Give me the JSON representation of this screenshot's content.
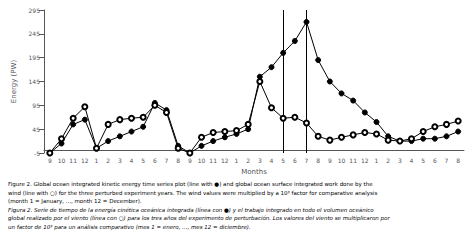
{
  "chart_data": {
    "type": "line",
    "xlabel": "Months",
    "ylabel": "Energy (PW)",
    "categories": [
      "9",
      "10",
      "11",
      "12",
      "1",
      "2",
      "3",
      "4",
      "5",
      "6",
      "7",
      "8",
      "9",
      "10",
      "11",
      "12",
      "1",
      "2",
      "3",
      "4",
      "5",
      "6",
      "7",
      "8",
      "9",
      "10",
      "11",
      "12",
      "1",
      "2",
      "3",
      "4",
      "5",
      "6",
      "7",
      "8"
    ],
    "series": [
      {
        "color": "#000000",
        "marker": "filled_circle",
        "values": [
          -5,
          15,
          55,
          65,
          5,
          20,
          30,
          40,
          50,
          100,
          85,
          10,
          -5,
          10,
          20,
          28,
          35,
          45,
          155,
          175,
          205,
          230,
          270,
          190,
          145,
          120,
          105,
          80,
          60,
          30,
          20,
          20,
          25,
          25,
          30,
          40
        ]
      },
      {
        "color": "#000000",
        "marker": "open_circle",
        "values": [
          -5,
          25,
          68,
          92,
          5,
          55,
          65,
          68,
          70,
          95,
          80,
          5,
          -5,
          28,
          38,
          40,
          42,
          55,
          145,
          90,
          68,
          70,
          58,
          30,
          22,
          28,
          33,
          38,
          35,
          22,
          20,
          25,
          40,
          50,
          55,
          62
        ]
      }
    ],
    "vlines": [
      {
        "index": 20,
        "color": "#000000"
      },
      {
        "index": 22,
        "color": "#000000"
      }
    ],
    "ylim": [
      -5,
      295
    ],
    "yticks": [
      -5,
      45,
      95,
      145,
      195,
      245,
      295
    ],
    "grid": false,
    "captions": [
      {
        "text": "Figure 2. Global ocean integrated kinetic energy time series plot (line with ●) and global ocean surface integrated work done by the",
        "style": "normal"
      },
      {
        "text": "wind (line with ○) for the three perturbed experiment years. The wind values were multiplied by a 10³ factor for comparative analysis",
        "style": "normal"
      },
      {
        "text": "(month 1 = January, ..., month 12 = December).",
        "style": "normal"
      },
      {
        "text": "Figura 2. Serie de tiempo de la energía cinética oceánica integrada (línea con ●) y el trabajo integrado en todo el volumen oceánico",
        "style": "italic"
      },
      {
        "text": "global realizado por el viento (línea con ○) para los tres años del experimento de perturbación. Los valores del viento se multiplicaron por",
        "style": "italic"
      },
      {
        "text": "un factor de 10³ para un análisis comparativo (mes 1 = enero, ..., mes 12 = diciembre).",
        "style": "italic"
      }
    ]
  }
}
